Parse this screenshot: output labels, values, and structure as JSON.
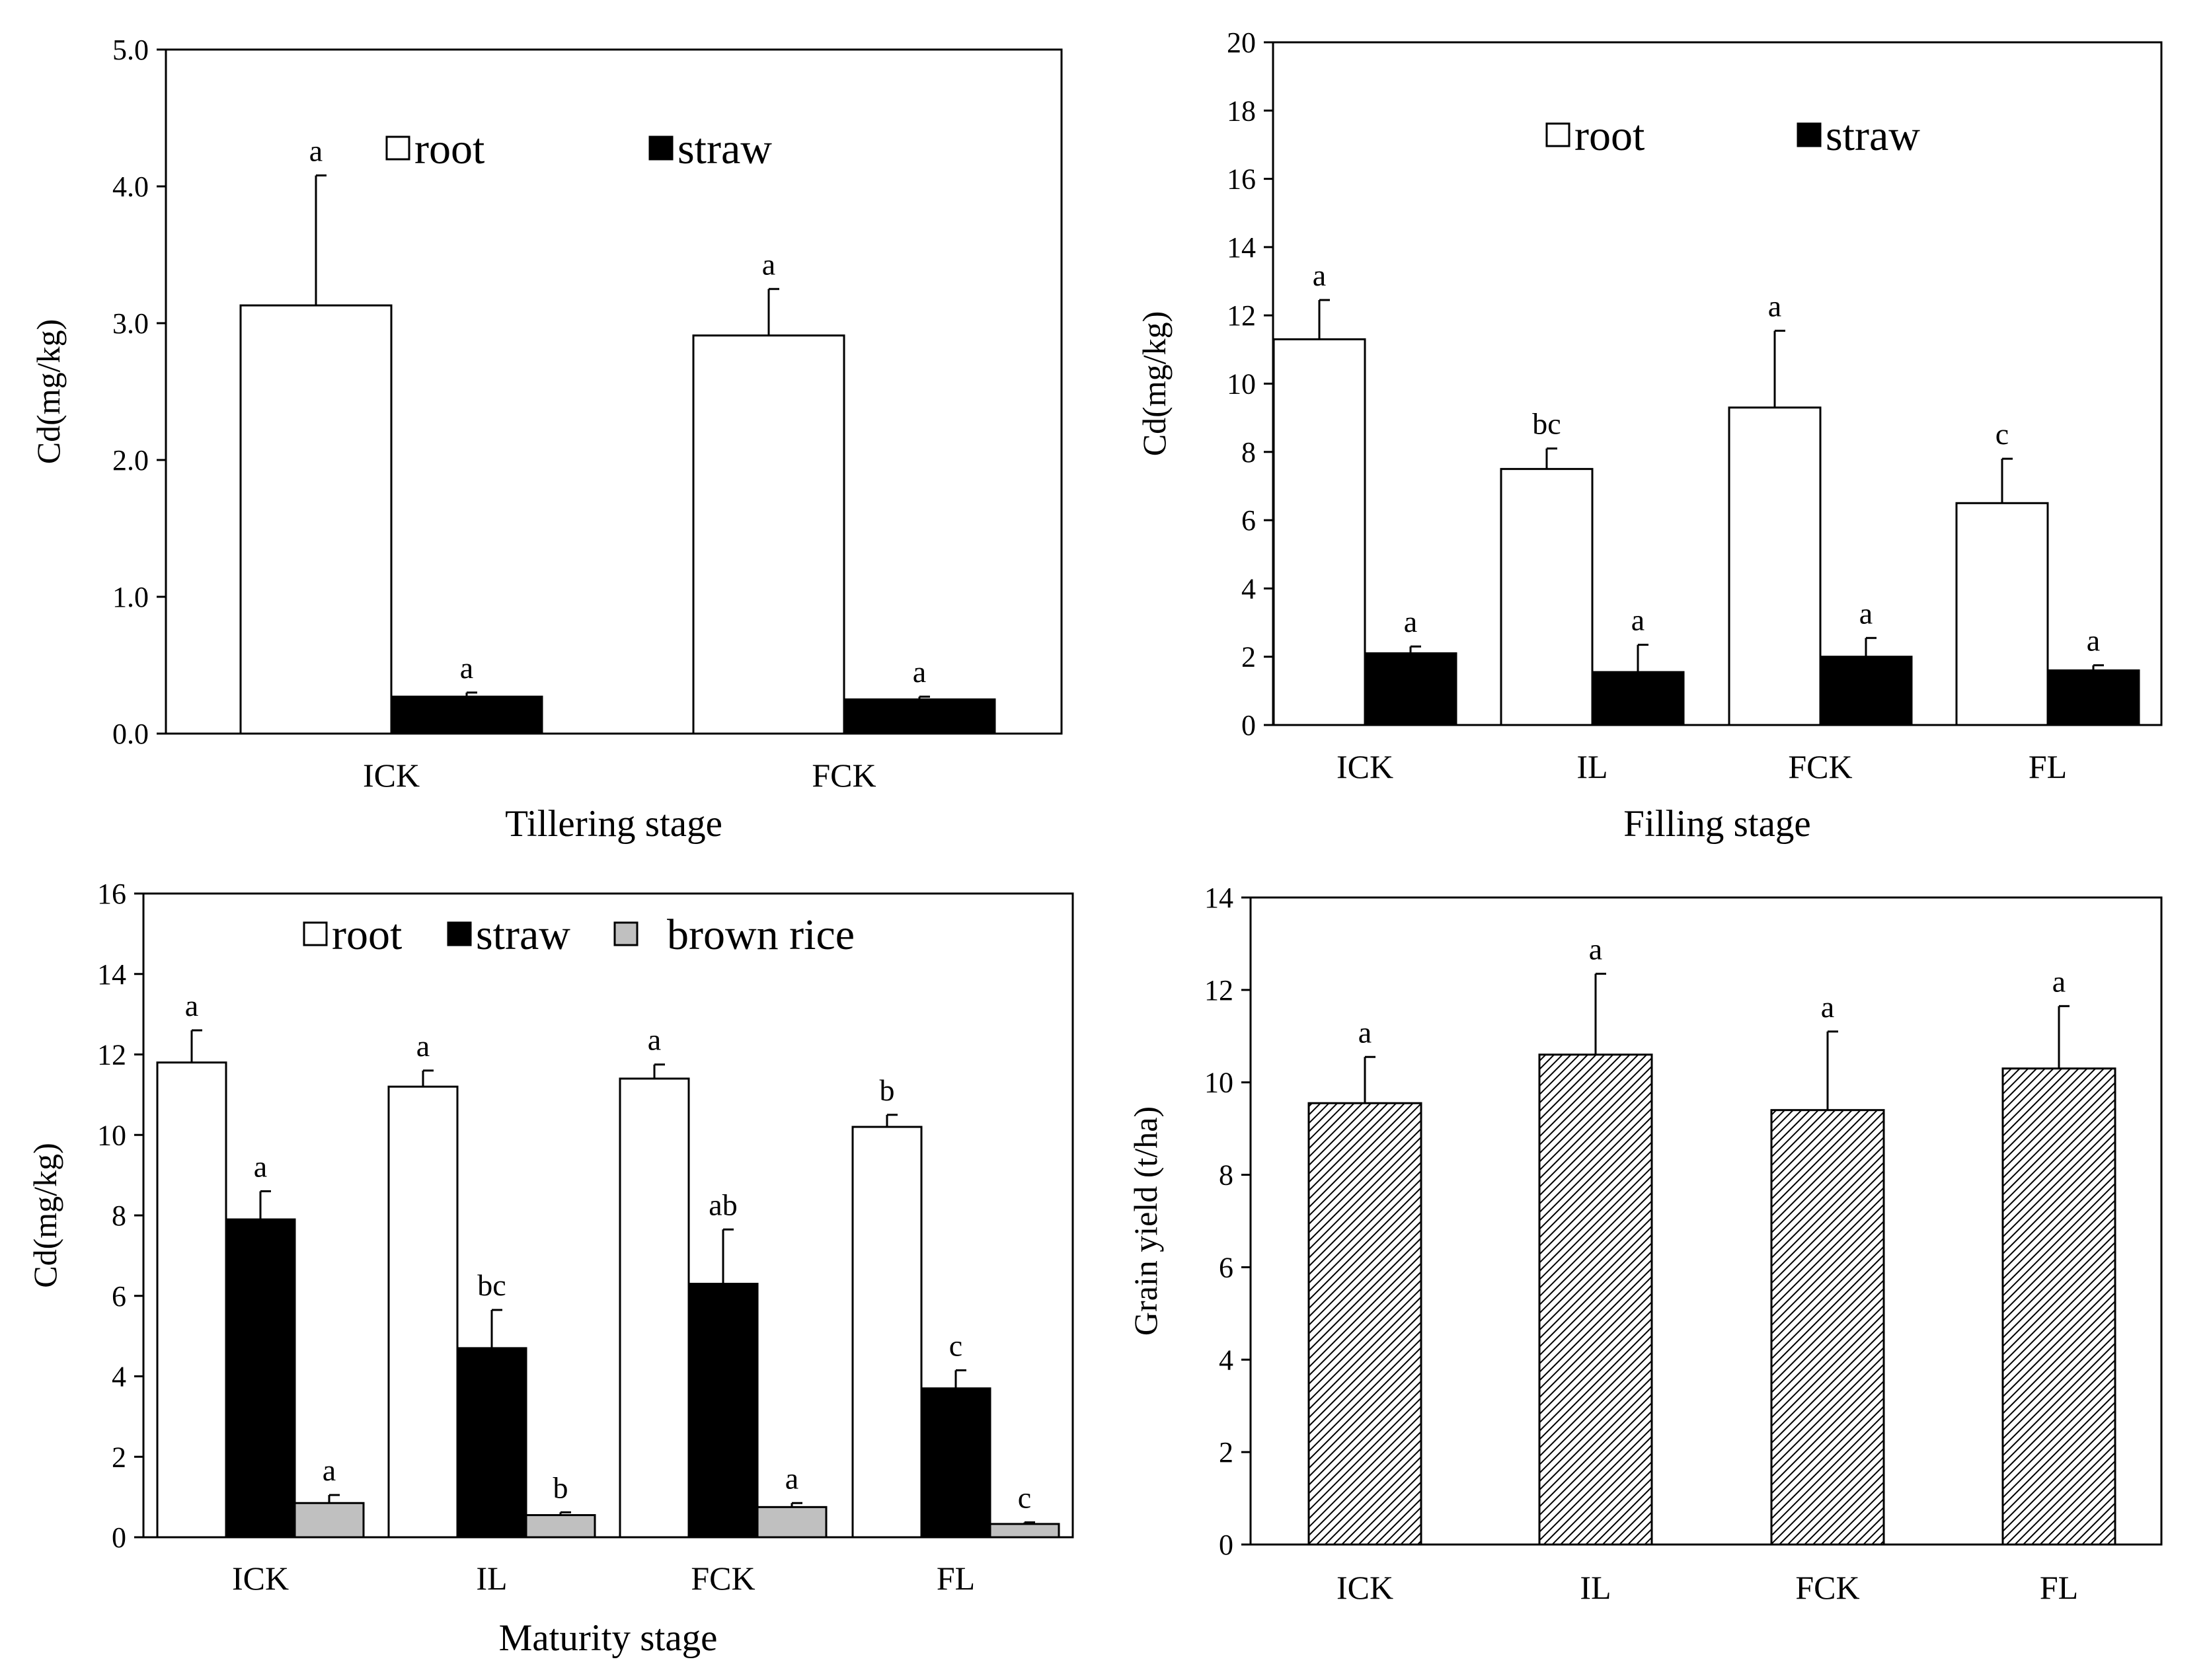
{
  "chart_data": [
    {
      "type": "bar",
      "title": "",
      "xlabel": "Tillering stage",
      "ylabel": "Cd(mg/kg)",
      "ylim": [
        0,
        5
      ],
      "yticks": [
        "0.0",
        "1.0",
        "2.0",
        "3.0",
        "4.0",
        "5.0"
      ],
      "categories": [
        "ICK",
        "FCK"
      ],
      "legend": [
        "root",
        "straw"
      ],
      "series": [
        {
          "name": "root",
          "fill": "#ffffff",
          "values": [
            3.13,
            2.91
          ],
          "errors": [
            0.95,
            0.34
          ],
          "letters": [
            "a",
            "a"
          ]
        },
        {
          "name": "straw",
          "fill": "#000000",
          "values": [
            0.27,
            0.25
          ],
          "errors": [
            0.03,
            0.02
          ],
          "letters": [
            "a",
            "a"
          ]
        }
      ]
    },
    {
      "type": "bar",
      "title": "",
      "xlabel": "Filling stage",
      "ylabel": "Cd(mg/kg)",
      "ylim": [
        0,
        20
      ],
      "yticks": [
        "0",
        "2",
        "4",
        "6",
        "8",
        "10",
        "12",
        "14",
        "16",
        "18",
        "20"
      ],
      "categories": [
        "ICK",
        "IL",
        "FCK",
        "FL"
      ],
      "legend": [
        "root",
        "straw"
      ],
      "series": [
        {
          "name": "root",
          "fill": "#ffffff",
          "values": [
            11.3,
            7.5,
            9.3,
            6.5
          ],
          "errors": [
            1.15,
            0.6,
            2.25,
            1.3
          ],
          "letters": [
            "a",
            "bc",
            "a",
            "c"
          ]
        },
        {
          "name": "straw",
          "fill": "#000000",
          "values": [
            2.1,
            1.55,
            2.0,
            1.6
          ],
          "errors": [
            0.2,
            0.8,
            0.55,
            0.15
          ],
          "letters": [
            "a",
            "a",
            "a",
            "a"
          ]
        }
      ]
    },
    {
      "type": "bar",
      "title": "",
      "xlabel": "Maturity stage",
      "ylabel": "Cd(mg/kg)",
      "ylim": [
        0,
        16
      ],
      "yticks": [
        "0",
        "2",
        "4",
        "6",
        "8",
        "10",
        "12",
        "14",
        "16"
      ],
      "categories": [
        "ICK",
        "IL",
        "FCK",
        "FL"
      ],
      "legend": [
        "root",
        "straw",
        "brown rice"
      ],
      "series": [
        {
          "name": "root",
          "fill": "#ffffff",
          "values": [
            11.8,
            11.2,
            11.4,
            10.2
          ],
          "errors": [
            0.8,
            0.4,
            0.35,
            0.3
          ],
          "letters": [
            "a",
            "a",
            "a",
            "b"
          ]
        },
        {
          "name": "straw",
          "fill": "#000000",
          "values": [
            7.9,
            4.7,
            6.3,
            3.7
          ],
          "errors": [
            0.7,
            0.95,
            1.35,
            0.45
          ],
          "letters": [
            "a",
            "bc",
            "ab",
            "c"
          ]
        },
        {
          "name": "brown rice",
          "fill": "#c0c0c0",
          "values": [
            0.85,
            0.55,
            0.75,
            0.33
          ],
          "errors": [
            0.2,
            0.07,
            0.1,
            0.04
          ],
          "letters": [
            "a",
            "b",
            "a",
            "c"
          ]
        }
      ]
    },
    {
      "type": "bar",
      "title": "",
      "xlabel": "",
      "ylabel": "Grain yield (t/ha)",
      "ylim": [
        0,
        14
      ],
      "yticks": [
        "0",
        "2",
        "4",
        "6",
        "8",
        "10",
        "12",
        "14"
      ],
      "categories": [
        "ICK",
        "IL",
        "FCK",
        "FL"
      ],
      "legend": [],
      "series": [
        {
          "name": "grain yield",
          "fill": "hatch",
          "values": [
            9.55,
            10.6,
            9.4,
            10.3
          ],
          "errors": [
            1.0,
            1.75,
            1.7,
            1.35
          ],
          "letters": [
            "a",
            "a",
            "a",
            "a"
          ]
        }
      ]
    }
  ]
}
